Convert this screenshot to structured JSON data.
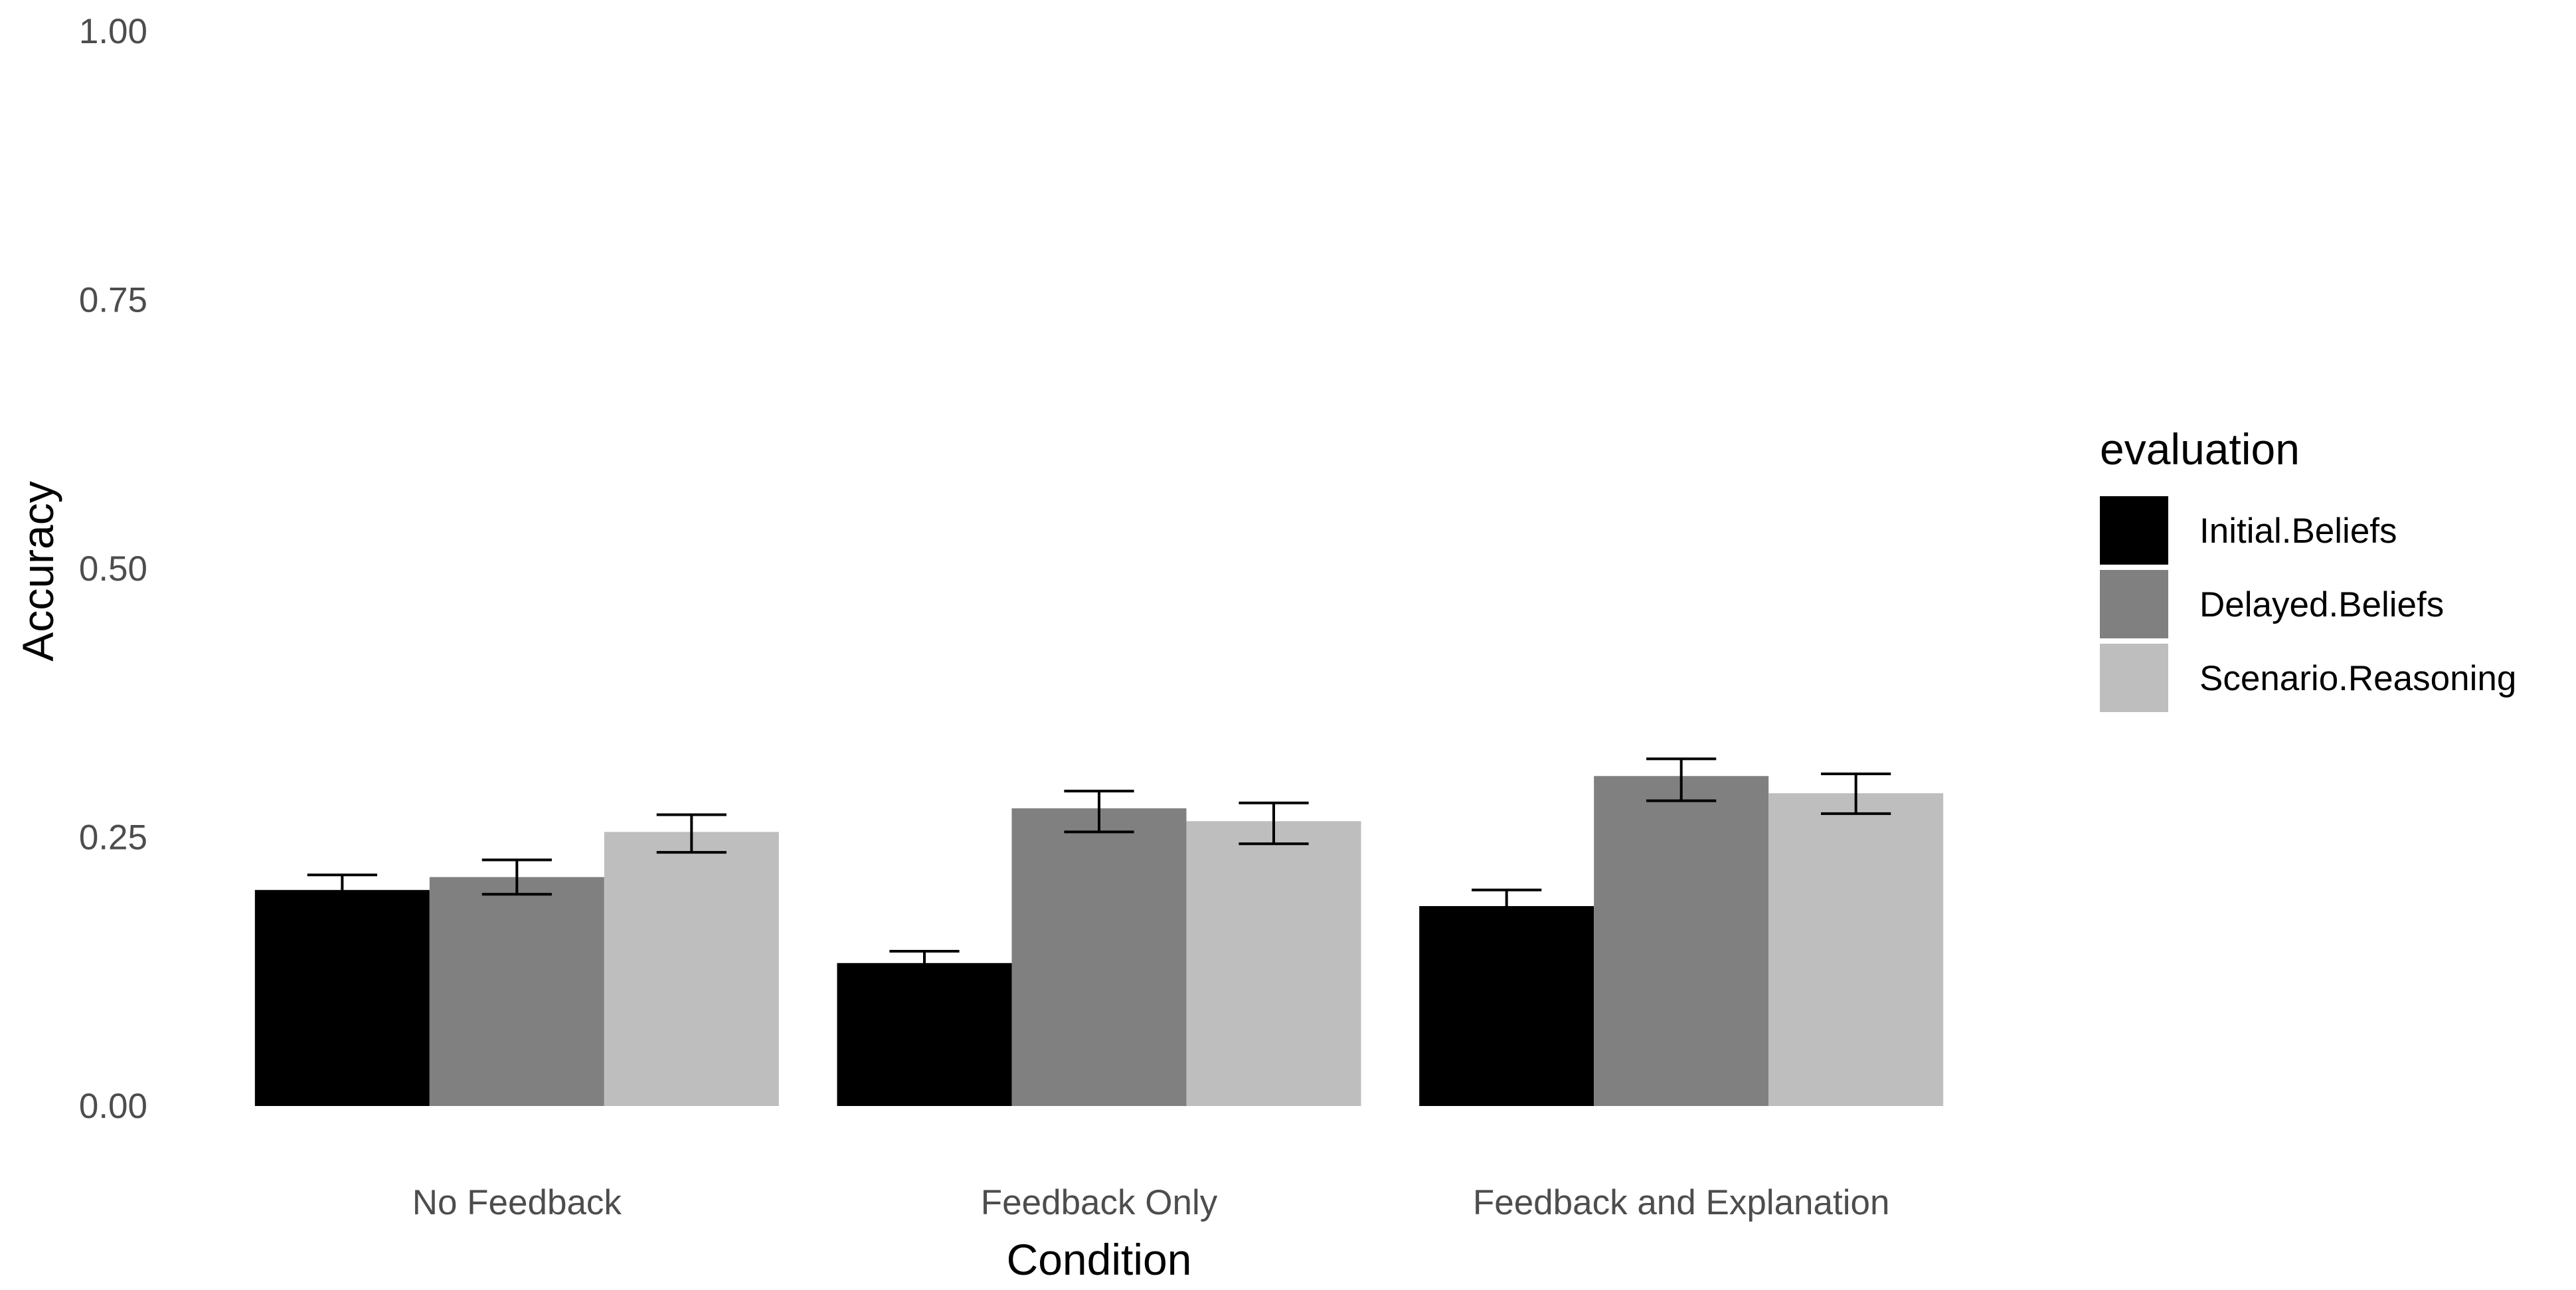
{
  "chart_data": {
    "type": "bar",
    "title": "",
    "xlabel": "Condition",
    "ylabel": "Accuracy",
    "ylim": [
      0,
      1
    ],
    "yticks": [
      "0.00",
      "0.25",
      "0.50",
      "0.75",
      "1.00"
    ],
    "ytick_values": [
      0,
      0.25,
      0.5,
      0.75,
      1.0
    ],
    "grid": false,
    "categories": [
      "No Feedback",
      "Feedback Only",
      "Feedback and Explanation"
    ],
    "legend": {
      "title": "evaluation",
      "placement": "right"
    },
    "series": [
      {
        "name": "Initial.Beliefs",
        "color": "#000000",
        "values": [
          0.201,
          0.133,
          0.186
        ],
        "error_low": [
          0.187,
          0.122,
          0.171
        ],
        "error_high": [
          0.215,
          0.144,
          0.201
        ]
      },
      {
        "name": "Delayed.Beliefs",
        "color": "#808080",
        "values": [
          0.213,
          0.277,
          0.307
        ],
        "error_low": [
          0.197,
          0.255,
          0.284
        ],
        "error_high": [
          0.229,
          0.293,
          0.323
        ]
      },
      {
        "name": "Scenario.Reasoning",
        "color": "#bebebe",
        "values": [
          0.255,
          0.265,
          0.291
        ],
        "error_low": [
          0.236,
          0.244,
          0.272
        ],
        "error_high": [
          0.271,
          0.282,
          0.309
        ]
      }
    ]
  }
}
